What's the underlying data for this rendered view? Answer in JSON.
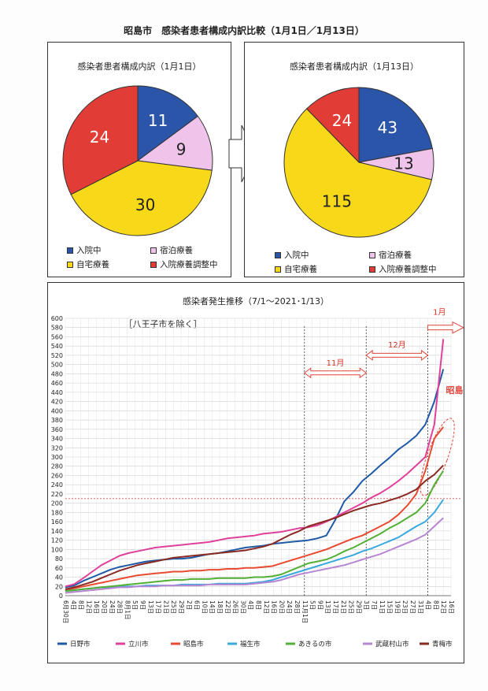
{
  "page_title": "昭島市　感染者患者構成内訳比較（1月1日／1月13日）",
  "colors": {
    "hospital": "#2b55a8",
    "hotel": "#f0c4ea",
    "home": "#f7d91a",
    "adjusting": "#e23c36"
  },
  "legend_categories": [
    "入院中",
    "宿泊療養",
    "自宅療養",
    "入院療養調整中"
  ],
  "chart_data": [
    {
      "type": "pie",
      "title": "感染者患者構成内訳（1月1日）",
      "categories": [
        "入院中",
        "宿泊療養",
        "自宅療養",
        "入院療養調整中"
      ],
      "values": [
        11,
        9,
        30,
        24
      ]
    },
    {
      "type": "pie",
      "title": "感染者患者構成内訳（1月13日）",
      "categories": [
        "入院中",
        "宿泊療養",
        "自宅療養",
        "入院療養調整中"
      ],
      "values": [
        43,
        13,
        115,
        24
      ]
    },
    {
      "type": "line",
      "title": "感染者発生推移（7/1～2021･1/13）",
      "subtitle": "［八王子市を除く］",
      "ylim": [
        0,
        600
      ],
      "y_ticks": [
        0,
        20,
        40,
        60,
        80,
        100,
        120,
        140,
        160,
        180,
        200,
        220,
        240,
        260,
        280,
        300,
        320,
        340,
        360,
        380,
        400,
        420,
        440,
        460,
        480,
        500,
        520,
        540,
        560,
        580,
        600
      ],
      "x_tick_labels": [
        "6月30日",
        "4日",
        "8日",
        "12日",
        "16日",
        "20日",
        "24日",
        "28日",
        "8月1日",
        "5日",
        "9日",
        "13日",
        "17日",
        "21日",
        "25日",
        "29日",
        "2日",
        "6日",
        "10日",
        "14日",
        "18日",
        "22日",
        "26日",
        "30日",
        "4日",
        "8日",
        "12日",
        "16日",
        "20日",
        "24日",
        "28日",
        "11月1日",
        "5日",
        "9日",
        "13日",
        "17日",
        "21日",
        "25日",
        "29日",
        "3日",
        "7日",
        "11日",
        "15日",
        "19日",
        "23日",
        "27日",
        "31日",
        "4日",
        "8日",
        "12日",
        "16日"
      ],
      "annotations": [
        "11月",
        "12月",
        "1月",
        "昭島市"
      ],
      "series": [
        {
          "name": "日野市",
          "color": "#1f5aa6",
          "values": [
            18,
            22,
            32,
            40,
            48,
            56,
            62,
            66,
            70,
            74,
            76,
            78,
            80,
            80,
            82,
            86,
            90,
            92,
            96,
            100,
            104,
            106,
            108,
            112,
            114,
            116,
            118,
            120,
            124,
            130,
            164,
            204,
            224,
            248,
            264,
            282,
            298,
            316,
            330,
            346,
            370,
            420,
            490
          ]
        },
        {
          "name": "立川市",
          "color": "#e0409a",
          "values": [
            20,
            25,
            38,
            52,
            66,
            76,
            86,
            92,
            96,
            100,
            104,
            106,
            108,
            110,
            112,
            114,
            116,
            120,
            124,
            126,
            128,
            130,
            134,
            136,
            138,
            142,
            146,
            148,
            152,
            160,
            170,
            180,
            190,
            200,
            212,
            222,
            234,
            248,
            264,
            282,
            300,
            370,
            555
          ]
        },
        {
          "name": "昭島市",
          "color": "#e84a32",
          "values": [
            12,
            16,
            20,
            24,
            28,
            32,
            36,
            40,
            44,
            46,
            48,
            50,
            52,
            52,
            54,
            54,
            56,
            56,
            58,
            58,
            60,
            60,
            62,
            64,
            70,
            76,
            82,
            88,
            94,
            100,
            108,
            116,
            124,
            130,
            140,
            150,
            160,
            175,
            195,
            220,
            270,
            340,
            365
          ]
        },
        {
          "name": "福生市",
          "color": "#3aa8dc",
          "values": [
            10,
            12,
            14,
            16,
            18,
            18,
            20,
            20,
            20,
            22,
            22,
            22,
            22,
            24,
            24,
            24,
            24,
            26,
            26,
            26,
            26,
            28,
            30,
            34,
            40,
            46,
            52,
            58,
            64,
            70,
            76,
            82,
            88,
            96,
            102,
            110,
            118,
            126,
            138,
            150,
            160,
            180,
            208
          ]
        },
        {
          "name": "あきるの市",
          "color": "#52b035",
          "values": [
            10,
            12,
            14,
            16,
            18,
            20,
            22,
            24,
            26,
            28,
            30,
            32,
            34,
            34,
            36,
            36,
            36,
            38,
            38,
            38,
            38,
            40,
            40,
            42,
            46,
            54,
            62,
            70,
            74,
            78,
            86,
            96,
            104,
            114,
            124,
            134,
            146,
            156,
            168,
            180,
            200,
            240,
            270
          ]
        },
        {
          "name": "武蔵村山市",
          "color": "#b786d2",
          "values": [
            6,
            8,
            10,
            12,
            14,
            16,
            18,
            18,
            20,
            20,
            20,
            22,
            22,
            22,
            22,
            22,
            24,
            24,
            24,
            24,
            24,
            26,
            28,
            30,
            34,
            40,
            46,
            50,
            54,
            58,
            62,
            66,
            72,
            78,
            84,
            90,
            98,
            106,
            114,
            122,
            132,
            150,
            168
          ]
        },
        {
          "name": "青梅市",
          "color": "#8a2a22",
          "values": [
            14,
            18,
            24,
            30,
            38,
            46,
            54,
            60,
            66,
            70,
            74,
            78,
            82,
            84,
            86,
            88,
            90,
            92,
            94,
            96,
            98,
            102,
            106,
            112,
            122,
            132,
            140,
            150,
            156,
            162,
            168,
            176,
            184,
            190,
            196,
            200,
            206,
            212,
            220,
            230,
            248,
            262,
            282
          ]
        }
      ]
    }
  ]
}
